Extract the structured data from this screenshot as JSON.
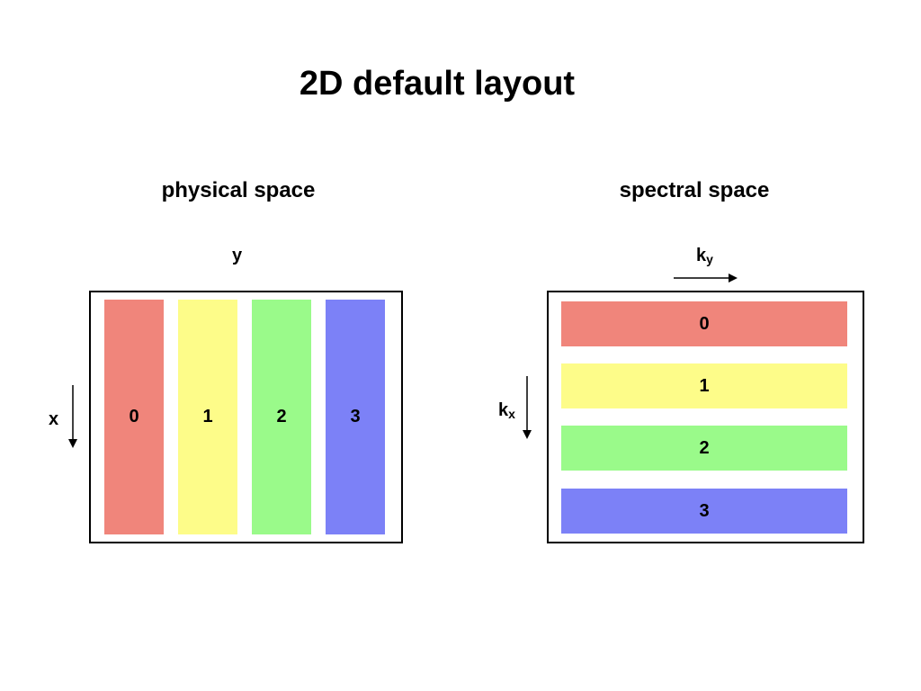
{
  "title": "2D default layout",
  "physical": {
    "heading": "physical space",
    "horizontal_axis": "y",
    "vertical_axis": "x",
    "blocks": [
      {
        "label": "0",
        "color": "#f0857b"
      },
      {
        "label": "1",
        "color": "#fdfc89"
      },
      {
        "label": "2",
        "color": "#9afa8a"
      },
      {
        "label": "3",
        "color": "#7c81f7"
      }
    ]
  },
  "spectral": {
    "heading": "spectral space",
    "horizontal_axis": {
      "base": "k",
      "sub": "y"
    },
    "vertical_axis": {
      "base": "k",
      "sub": "x"
    },
    "blocks": [
      {
        "label": "0",
        "color": "#f0857b"
      },
      {
        "label": "1",
        "color": "#fdfc89"
      },
      {
        "label": "2",
        "color": "#9afa8a"
      },
      {
        "label": "3",
        "color": "#7c81f7"
      }
    ]
  }
}
